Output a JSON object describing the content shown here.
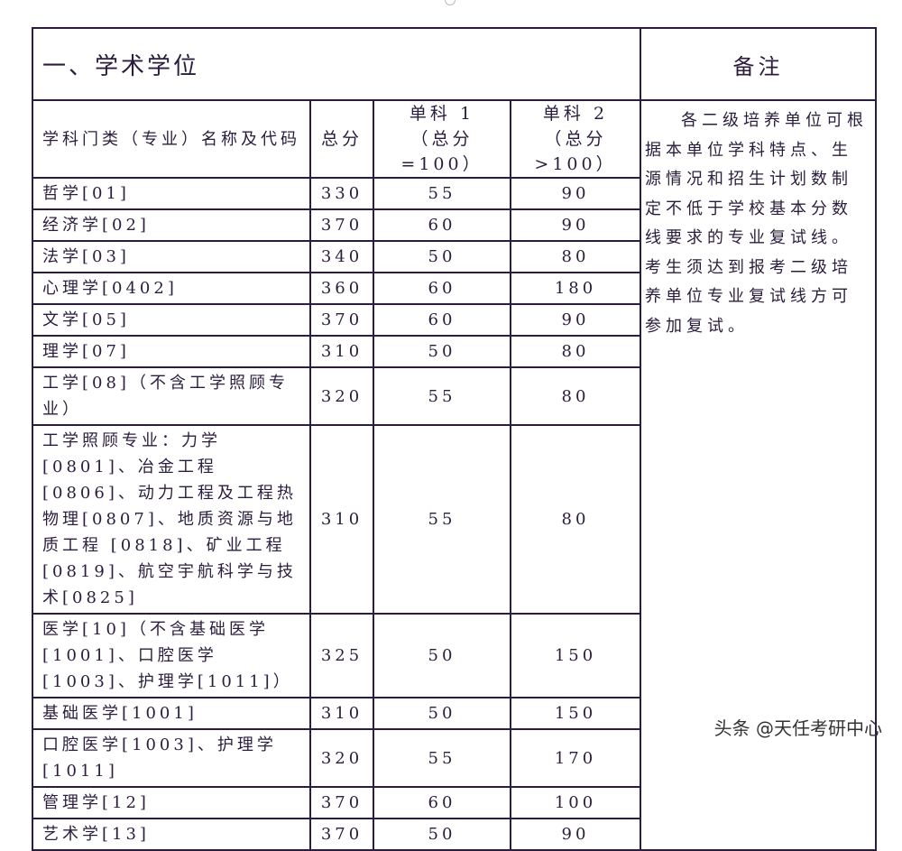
{
  "section_title": "一、学术学位",
  "remarks_title": "备注",
  "headers": {
    "name": "学科门类（专业）名称及代码",
    "total": "总分",
    "single1_line1": "单科 1",
    "single1_line2": "（总分=100）",
    "single2_line1": "单科 2",
    "single2_line2": "（总分>100）"
  },
  "remarks": "各二级培养单位可根据本单位学科特点、生源情况和招生计划数制定不低于学校基本分数线要求的专业复试线。考生须达到报考二级培养单位专业复试线方可参加复试。",
  "rows": [
    {
      "name": "哲学[01]",
      "total": "330",
      "s1": "55",
      "s2": "90"
    },
    {
      "name": "经济学[02]",
      "total": "370",
      "s1": "60",
      "s2": "90"
    },
    {
      "name": "法学[03]",
      "total": "340",
      "s1": "50",
      "s2": "80"
    },
    {
      "name": "心理学[0402]",
      "total": "360",
      "s1": "60",
      "s2": "180"
    },
    {
      "name": "文学[05]",
      "total": "370",
      "s1": "60",
      "s2": "90"
    },
    {
      "name": "理学[07]",
      "total": "310",
      "s1": "50",
      "s2": "80"
    },
    {
      "name": "工学[08]（不含工学照顾专业）",
      "total": "320",
      "s1": "55",
      "s2": "80"
    },
    {
      "name": "工学照顾专业：力学[0801]、冶金工程[0806]、动力工程及工程热物理[0807]、地质资源与地质工程 [0818]、矿业工程[0819]、航空宇航科学与技术[0825]",
      "total": "310",
      "s1": "55",
      "s2": "80"
    },
    {
      "name": "医学[10]（不含基础医学[1001]、口腔医学[1003]、护理学[1011]）",
      "total": "325",
      "s1": "50",
      "s2": "150"
    },
    {
      "name": "基础医学[1001]",
      "total": "310",
      "s1": "50",
      "s2": "150"
    },
    {
      "name": "口腔医学[1003]、护理学[1011]",
      "total": "320",
      "s1": "55",
      "s2": "170"
    },
    {
      "name": "管理学[12]",
      "total": "370",
      "s1": "60",
      "s2": "100"
    },
    {
      "name": "艺术学[13]",
      "total": "370",
      "s1": "50",
      "s2": "90"
    }
  ],
  "watermark": "头条 @天任考研中心"
}
